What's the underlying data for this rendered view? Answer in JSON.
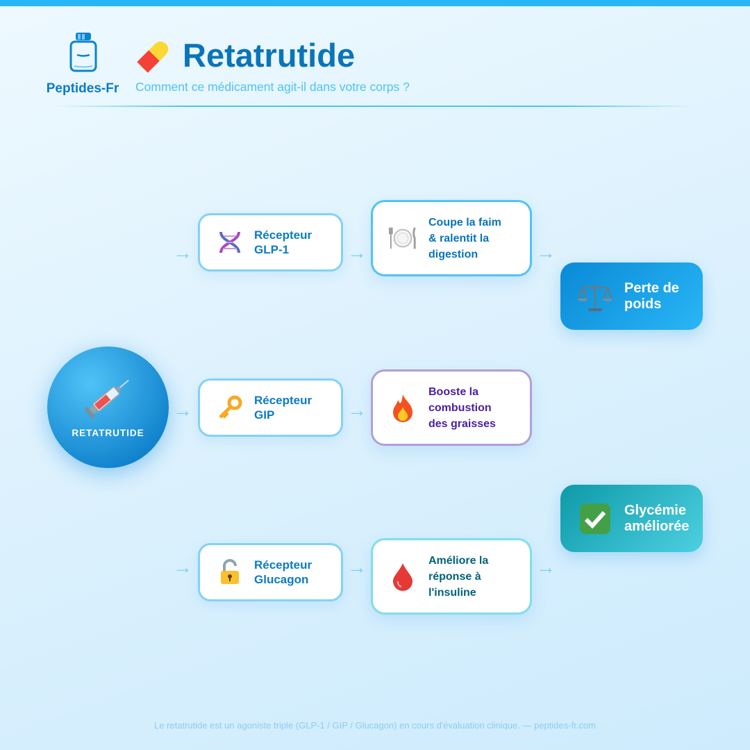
{
  "brand": {
    "name": "Peptides-Fr",
    "icon": "bottle-icon"
  },
  "header": {
    "title": "Retatrutide",
    "title_icon": "pill-icon",
    "subtitle": "Comment ce médicament agit-il dans votre corps ?"
  },
  "center": {
    "label": "RETATRUTIDE",
    "icon": "syringe-icon"
  },
  "receptors": [
    {
      "label": "Récepteur GLP-1",
      "icon": "dna-icon"
    },
    {
      "label": "Récepteur GIP",
      "icon": "key-icon"
    },
    {
      "label": "Récepteur Glucagon",
      "icon": "unlock-icon"
    }
  ],
  "effects": [
    {
      "label": "Coupe la faim & ralentit la digestion",
      "icon": "plate-cutlery-icon",
      "border": "#4fc3f7",
      "color": "#0a74b9"
    },
    {
      "label": "Booste la combustion des graisses",
      "icon": "fire-icon",
      "border": "#b39ddb",
      "color": "#4a1fa0"
    },
    {
      "label": "Améliore la réponse à l'insuline",
      "icon": "blood-drop-icon",
      "border": "#80deea",
      "color": "#00627a"
    }
  ],
  "outcomes": [
    {
      "label": "Perte de poids",
      "icon": "scales-icon",
      "color": "#0a8ad6"
    },
    {
      "label": "Glycémie améliorée",
      "icon": "check-icon",
      "color": "#0e9aa8"
    }
  ],
  "arrow_glyph": "→",
  "footer": "Le retatrutide est un agoniste triple (GLP-1 / GIP / Glucagon) en cours d'évaluation clinique. — peptides-fr.com"
}
